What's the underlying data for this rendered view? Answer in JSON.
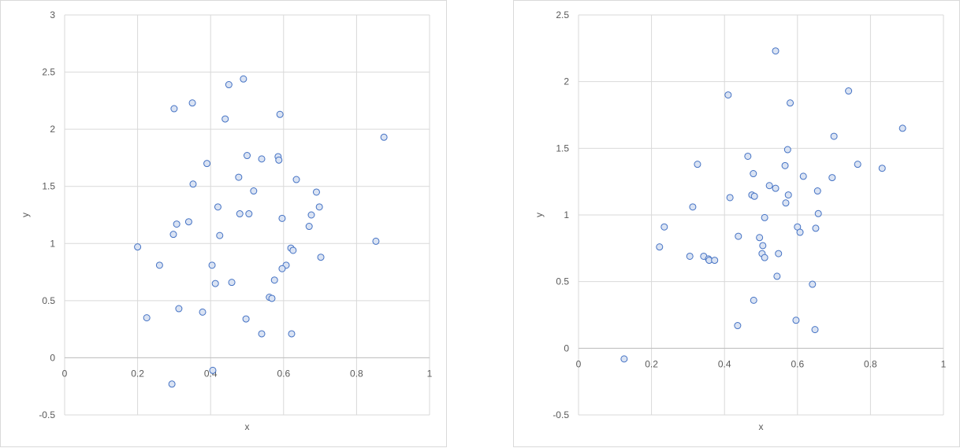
{
  "chart_data": [
    {
      "type": "scatter",
      "xlabel": "x",
      "ylabel": "y",
      "xlim": [
        0,
        1
      ],
      "ylim": [
        -0.5,
        3
      ],
      "xticks": [
        "0",
        "0.2",
        "0.4",
        "0.6",
        "0.8",
        "1"
      ],
      "yticks": [
        "-0.5",
        "0",
        "0.5",
        "1",
        "1.5",
        "2",
        "2.5",
        "3"
      ],
      "grid": true,
      "marker_color": "#4472C4",
      "points": [
        [
          0.2,
          0.97
        ],
        [
          0.3,
          2.18
        ],
        [
          0.35,
          2.23
        ],
        [
          0.45,
          2.39
        ],
        [
          0.49,
          2.44
        ],
        [
          0.44,
          2.09
        ],
        [
          0.59,
          2.13
        ],
        [
          0.875,
          1.93
        ],
        [
          0.39,
          1.7
        ],
        [
          0.5,
          1.77
        ],
        [
          0.54,
          1.74
        ],
        [
          0.585,
          1.76
        ],
        [
          0.587,
          1.73
        ],
        [
          0.352,
          1.52
        ],
        [
          0.477,
          1.58
        ],
        [
          0.518,
          1.46
        ],
        [
          0.635,
          1.56
        ],
        [
          0.69,
          1.45
        ],
        [
          0.42,
          1.32
        ],
        [
          0.48,
          1.26
        ],
        [
          0.505,
          1.26
        ],
        [
          0.596,
          1.22
        ],
        [
          0.676,
          1.25
        ],
        [
          0.698,
          1.32
        ],
        [
          0.67,
          1.15
        ],
        [
          0.307,
          1.17
        ],
        [
          0.34,
          1.19
        ],
        [
          0.298,
          1.08
        ],
        [
          0.425,
          1.07
        ],
        [
          0.853,
          1.02
        ],
        [
          0.62,
          0.96
        ],
        [
          0.626,
          0.94
        ],
        [
          0.702,
          0.88
        ],
        [
          0.26,
          0.81
        ],
        [
          0.404,
          0.81
        ],
        [
          0.607,
          0.81
        ],
        [
          0.596,
          0.78
        ],
        [
          0.413,
          0.65
        ],
        [
          0.458,
          0.66
        ],
        [
          0.575,
          0.68
        ],
        [
          0.561,
          0.53
        ],
        [
          0.568,
          0.52
        ],
        [
          0.313,
          0.43
        ],
        [
          0.225,
          0.35
        ],
        [
          0.378,
          0.4
        ],
        [
          0.497,
          0.34
        ],
        [
          0.54,
          0.21
        ],
        [
          0.622,
          0.21
        ],
        [
          0.406,
          -0.11
        ],
        [
          0.294,
          -0.23
        ]
      ]
    },
    {
      "type": "scatter",
      "xlabel": "x",
      "ylabel": "y",
      "xlim": [
        0,
        1
      ],
      "ylim": [
        -0.5,
        2.5
      ],
      "xticks": [
        "0",
        "0.2",
        "0.4",
        "0.6",
        "0.8",
        "1"
      ],
      "yticks": [
        "-0.5",
        "0",
        "0.5",
        "1",
        "1.5",
        "2",
        "2.5"
      ],
      "grid": true,
      "marker_color": "#4472C4",
      "points": [
        [
          0.54,
          2.23
        ],
        [
          0.41,
          1.9
        ],
        [
          0.58,
          1.84
        ],
        [
          0.74,
          1.93
        ],
        [
          0.888,
          1.65
        ],
        [
          0.7,
          1.59
        ],
        [
          0.573,
          1.49
        ],
        [
          0.464,
          1.44
        ],
        [
          0.326,
          1.38
        ],
        [
          0.566,
          1.37
        ],
        [
          0.765,
          1.38
        ],
        [
          0.832,
          1.35
        ],
        [
          0.479,
          1.31
        ],
        [
          0.616,
          1.29
        ],
        [
          0.695,
          1.28
        ],
        [
          0.523,
          1.22
        ],
        [
          0.54,
          1.2
        ],
        [
          0.655,
          1.18
        ],
        [
          0.415,
          1.13
        ],
        [
          0.475,
          1.15
        ],
        [
          0.482,
          1.14
        ],
        [
          0.575,
          1.15
        ],
        [
          0.568,
          1.09
        ],
        [
          0.313,
          1.06
        ],
        [
          0.657,
          1.01
        ],
        [
          0.51,
          0.98
        ],
        [
          0.235,
          0.91
        ],
        [
          0.6,
          0.91
        ],
        [
          0.607,
          0.87
        ],
        [
          0.65,
          0.9
        ],
        [
          0.438,
          0.84
        ],
        [
          0.496,
          0.83
        ],
        [
          0.222,
          0.76
        ],
        [
          0.505,
          0.77
        ],
        [
          0.503,
          0.71
        ],
        [
          0.51,
          0.68
        ],
        [
          0.548,
          0.71
        ],
        [
          0.305,
          0.69
        ],
        [
          0.343,
          0.69
        ],
        [
          0.356,
          0.67
        ],
        [
          0.358,
          0.66
        ],
        [
          0.373,
          0.66
        ],
        [
          0.544,
          0.54
        ],
        [
          0.641,
          0.48
        ],
        [
          0.48,
          0.36
        ],
        [
          0.436,
          0.17
        ],
        [
          0.596,
          0.21
        ],
        [
          0.648,
          0.14
        ],
        [
          0.125,
          -0.08
        ]
      ]
    }
  ]
}
